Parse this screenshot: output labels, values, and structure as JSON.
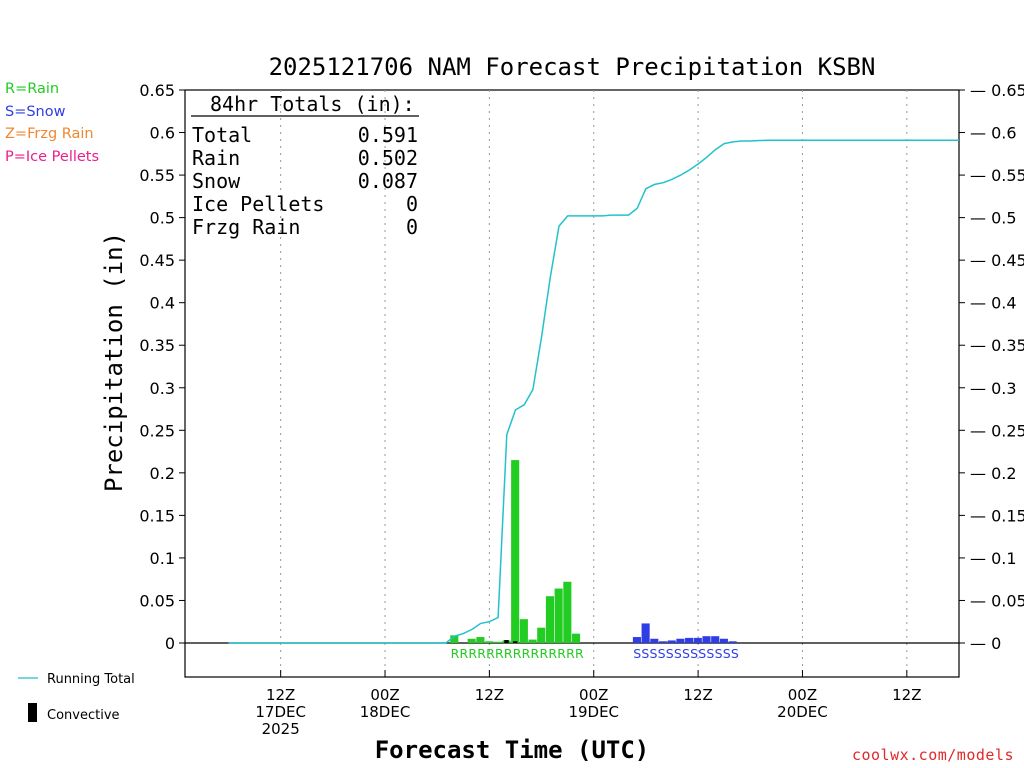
{
  "colors": {
    "rain": "#22cc22",
    "snow": "#2e3de6",
    "frzg": "#ee8833",
    "ice": "#e8208a",
    "running": "#22c2cc",
    "convective": "#000000",
    "site": "#e0292a"
  },
  "legend_types": {
    "rain": "R=Rain",
    "snow": "S=Snow",
    "frzg": "Z=Frzg Rain",
    "ice": "P=Ice Pellets"
  },
  "legend_bottom": {
    "running_total": "Running Total",
    "convective": "Convective"
  },
  "site_label": "coolwx.com/models",
  "chart_data": {
    "type": "bar",
    "title": "2025121706 NAM Forecast Precipitation KSBN",
    "xlabel": "Forecast Time (UTC)",
    "ylabel": "Precipitation (in)",
    "ylim": [
      0,
      0.65
    ],
    "y_ticks": [
      0,
      0.05,
      0.1,
      0.15,
      0.2,
      0.25,
      0.3,
      0.35,
      0.4,
      0.45,
      0.5,
      0.55,
      0.6,
      0.65
    ],
    "y_tick_labels": [
      "0",
      "0.05",
      "0.1",
      "0.15",
      "0.2",
      "0.25",
      "0.3",
      "0.35",
      "0.4",
      "0.45",
      "0.5",
      "0.55",
      "0.6",
      "0.65"
    ],
    "x_unit": "forecast hour",
    "xlim": [
      -5,
      84
    ],
    "x_ticks": [
      {
        "hour": 6,
        "lines": [
          "12Z",
          "17DEC",
          "2025"
        ]
      },
      {
        "hour": 18,
        "lines": [
          "00Z",
          "18DEC"
        ]
      },
      {
        "hour": 30,
        "lines": [
          "12Z"
        ]
      },
      {
        "hour": 42,
        "lines": [
          "00Z",
          "19DEC"
        ]
      },
      {
        "hour": 54,
        "lines": [
          "12Z"
        ]
      },
      {
        "hour": 66,
        "lines": [
          "00Z",
          "20DEC"
        ]
      },
      {
        "hour": 78,
        "lines": [
          "12Z"
        ]
      }
    ],
    "totals_box": {
      "heading": "84hr Totals (in):",
      "rows": [
        {
          "label": "Total",
          "value": "0.591"
        },
        {
          "label": "Rain",
          "value": "0.502"
        },
        {
          "label": "Snow",
          "value": "0.087"
        },
        {
          "label": "Ice Pellets",
          "value": "0"
        },
        {
          "label": "Frzg Rain",
          "value": "0"
        }
      ]
    },
    "bar_hours": [
      26,
      27,
      28,
      29,
      30,
      31,
      32,
      33,
      34,
      35,
      36,
      37,
      38,
      39,
      40,
      41,
      47,
      48,
      49,
      50,
      51,
      52,
      53,
      54,
      55,
      56,
      57,
      58
    ],
    "series": [
      {
        "name": "Rain",
        "type": "rain",
        "values": [
          0.009,
          0.0,
          0.005,
          0.007,
          0.002,
          0.0015,
          0.003,
          0.215,
          0.028,
          0.004,
          0.018,
          0.055,
          0.064,
          0.072,
          0.011,
          0.0,
          0,
          0,
          0,
          0,
          0,
          0,
          0,
          0,
          0,
          0,
          0,
          0
        ]
      },
      {
        "name": "Snow",
        "type": "snow",
        "values": [
          0,
          0,
          0,
          0,
          0,
          0,
          0,
          0,
          0,
          0,
          0,
          0,
          0,
          0,
          0,
          0,
          0.007,
          0.023,
          0.005,
          0.002,
          0.003,
          0.005,
          0.006,
          0.006,
          0.008,
          0.008,
          0.005,
          0.002
        ]
      },
      {
        "name": "Convective",
        "type": "convective",
        "values": [
          0,
          0,
          0,
          0,
          0,
          0,
          0.0035,
          0.002,
          0,
          0,
          0,
          0,
          0,
          0,
          0,
          0,
          0,
          0,
          0,
          0,
          0,
          0,
          0,
          0,
          0,
          0,
          0,
          0
        ]
      }
    ],
    "running_total": {
      "name": "Running Total",
      "hours": [
        0,
        25,
        26,
        27,
        28,
        29,
        30,
        31,
        32,
        33,
        34,
        35,
        36,
        37,
        38,
        39,
        40,
        41,
        42,
        43,
        44,
        45,
        46,
        47,
        48,
        49,
        50,
        51,
        52,
        53,
        54,
        55,
        56,
        57,
        58,
        59,
        60,
        62,
        65,
        70,
        84
      ],
      "values": [
        0,
        0.0,
        0.008,
        0.011,
        0.016,
        0.023,
        0.025,
        0.03,
        0.245,
        0.274,
        0.28,
        0.298,
        0.36,
        0.43,
        0.49,
        0.502,
        0.502,
        0.502,
        0.502,
        0.502,
        0.503,
        0.503,
        0.503,
        0.511,
        0.534,
        0.539,
        0.541,
        0.545,
        0.55,
        0.556,
        0.563,
        0.571,
        0.58,
        0.587,
        0.589,
        0.59,
        0.59,
        0.591,
        0.591,
        0.591,
        0.591
      ]
    },
    "precip_type_strips": [
      {
        "type": "rain",
        "text": "RRRRRRRRRRRRRRR"
      },
      {
        "type": "snow",
        "text": "SSSSSSSSSSSSS"
      }
    ]
  }
}
